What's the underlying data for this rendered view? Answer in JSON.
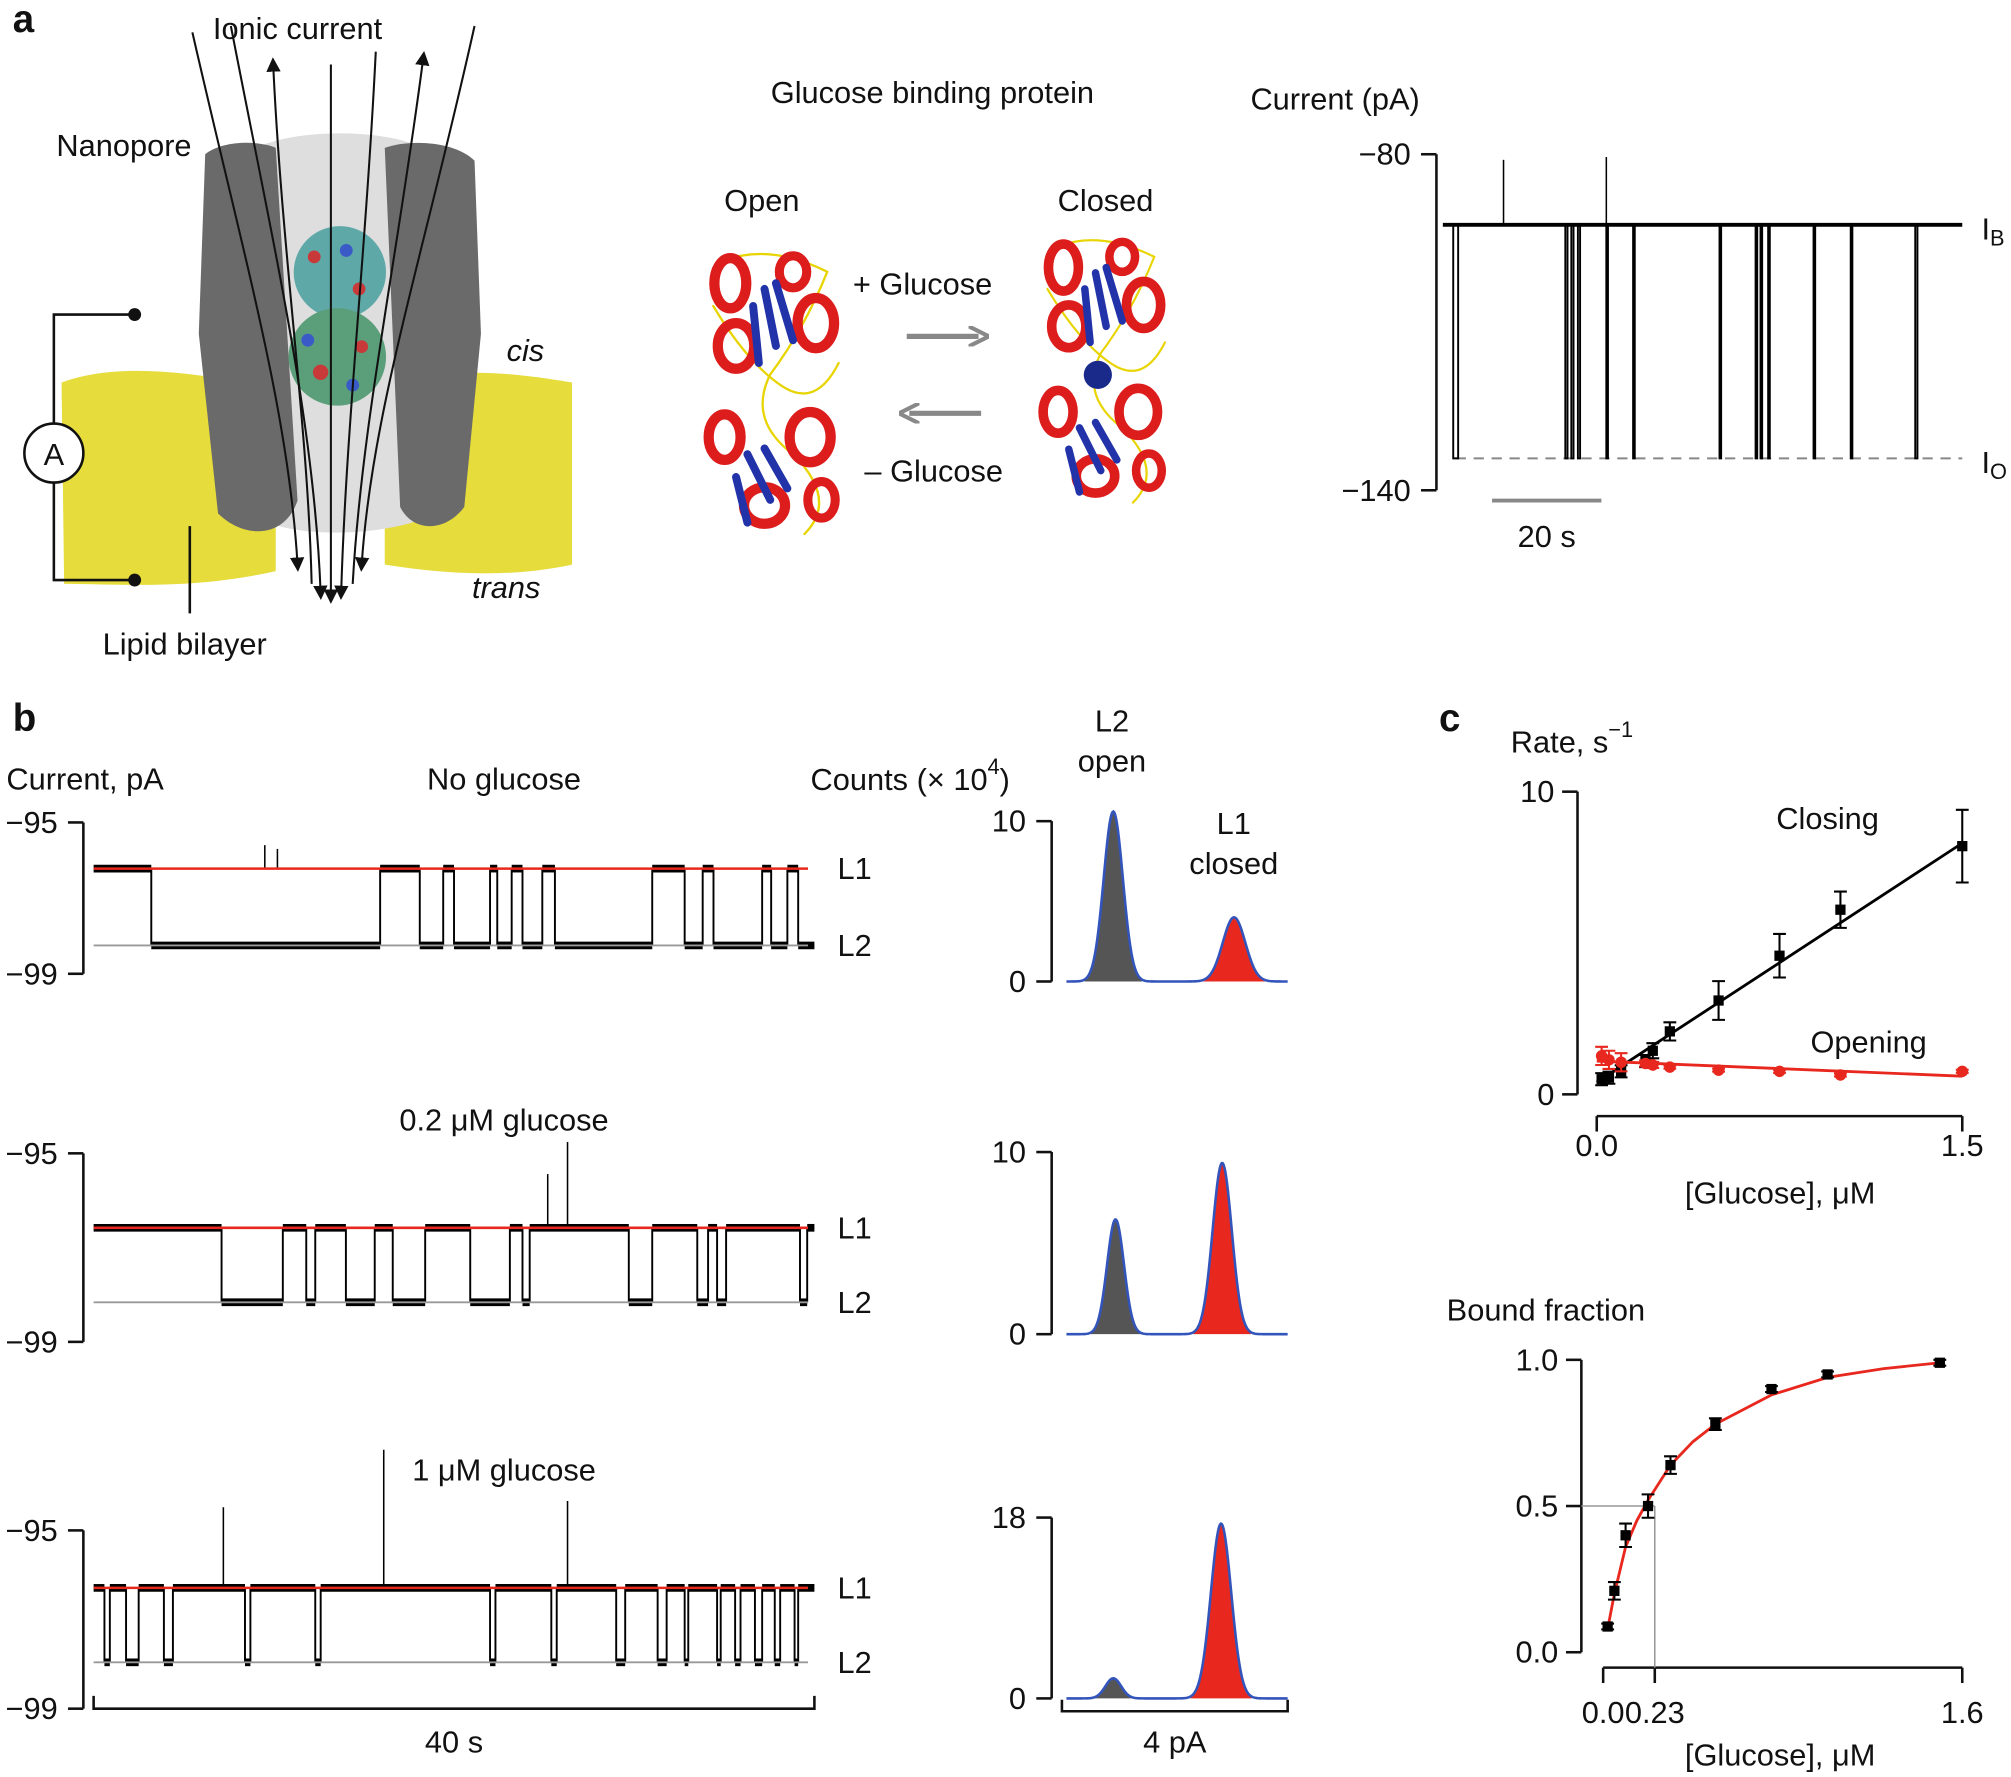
{
  "panel_labels": [
    "a",
    "b",
    "c"
  ],
  "a": {
    "schematic": {
      "ionic_current": "Ionic current",
      "nanopore": "Nanopore",
      "cis": "cis",
      "trans": "trans",
      "bilayer": "Lipid bilayer",
      "ammeter": "A"
    },
    "protein": {
      "title": "Glucose binding protein",
      "open": "Open",
      "closed": "Closed",
      "plus": "+ Glucose",
      "minus": "– Glucose"
    },
    "trace": {
      "ylabel": "Current (pA)",
      "ylim": [
        -140,
        -80
      ],
      "yticks": [
        {
          "value": -80,
          "label": "−80"
        },
        {
          "value": -140,
          "label": "−140"
        }
      ],
      "xlim": [
        0,
        95
      ],
      "baseline": -92.6,
      "blocked": -134.3,
      "color": "#000000",
      "events": [
        [
          1.9,
          2.8
        ],
        [
          22.4,
          22.8
        ],
        [
          23.5,
          23.9
        ],
        [
          24.7,
          25.1
        ],
        [
          29.9,
          30.2
        ],
        [
          34.8,
          35.1
        ],
        [
          50.6,
          50.9
        ],
        [
          57.2,
          57.5
        ],
        [
          58.1,
          58.4
        ],
        [
          59.5,
          59.8
        ],
        [
          67.8,
          68.1
        ],
        [
          74.6,
          74.9
        ],
        [
          86.4,
          86.8
        ]
      ],
      "spikes": [
        [
          11.1,
          -81
        ],
        [
          29.9,
          -80.5
        ]
      ],
      "levels": [
        {
          "main": "I",
          "sub": "B"
        },
        {
          "main": "I",
          "sub": "O"
        }
      ],
      "scale_bar": {
        "value": 20,
        "label": "20 s"
      }
    }
  },
  "b": {
    "ylabel": "Current, pA",
    "hist_ylabel": {
      "main": "Counts (× 10",
      "sup": "4",
      "end": ")"
    },
    "open_label": [
      "L2",
      "open"
    ],
    "closed_label": [
      "L1",
      "closed"
    ],
    "level_names": [
      "L1",
      "L2"
    ],
    "l1_color": "#e8281e",
    "l2_color": "#999999",
    "hist_colors": [
      "#555555",
      "#e8281e"
    ],
    "hist_line_color": "#3355bb",
    "xlim": [
      0,
      40
    ],
    "scale_bar": {
      "value": 40,
      "label": "40 s"
    },
    "hist_xlim": [
      0,
      4
    ],
    "hist_scale_bar": {
      "value": 4,
      "label": "4 pA"
    },
    "traces": [
      {
        "title": "No glucose",
        "ylim": [
          -99,
          -95
        ],
        "yticks": [
          {
            "value": -95,
            "label": "−95"
          },
          {
            "value": -99,
            "label": "−99"
          }
        ],
        "l1": -96.22,
        "l2": -98.25,
        "switch_times": [
          3.2,
          15.9,
          18.1,
          19.4,
          20.0,
          22.0,
          22.4,
          23.2,
          23.8,
          24.9,
          25.6,
          31.0,
          32.8,
          33.8,
          34.4,
          37.1,
          37.6,
          38.5,
          39.1
        ],
        "spikes": [
          [
            9.5,
            -95.6
          ],
          [
            10.2,
            -95.7
          ]
        ],
        "hist": {
          "ylim": [
            0,
            10
          ],
          "yticks": [
            0,
            10
          ],
          "peaks": [
            {
              "center": 0.91,
              "height": 10.6,
              "sd": 0.17
            },
            {
              "center": 3.05,
              "height": 4.0,
              "sd": 0.2
            }
          ]
        }
      },
      {
        "title": "0.2 μM glucose",
        "ylim": [
          -99,
          -95
        ],
        "yticks": [
          {
            "value": -95,
            "label": "−95"
          },
          {
            "value": -99,
            "label": "−99"
          }
        ],
        "l1": -96.58,
        "l2": -98.16,
        "switch_times": [
          7.1,
          10.5,
          11.8,
          12.3,
          14.0,
          15.6,
          16.6,
          18.4,
          20.9,
          23.1,
          23.8,
          24.2,
          29.7,
          31.0,
          33.5,
          34.1,
          34.6,
          35.1,
          39.2,
          39.6
        ],
        "spikes": [
          [
            25.2,
            -95.44
          ],
          [
            26.3,
            -94.76
          ]
        ],
        "hist": {
          "ylim": [
            0,
            10
          ],
          "yticks": [
            0,
            10
          ],
          "peaks": [
            {
              "center": 0.95,
              "height": 6.3,
              "sd": 0.15
            },
            {
              "center": 2.84,
              "height": 9.4,
              "sd": 0.17
            }
          ]
        }
      },
      {
        "title": "1 μM glucose",
        "ylim": [
          -99,
          -95
        ],
        "yticks": [
          {
            "value": -95,
            "label": "−95"
          },
          {
            "value": -99,
            "label": "−99"
          }
        ],
        "l1": -96.29,
        "l2": -97.96,
        "switch_times": [
          0.6,
          0.9,
          1.8,
          2.5,
          3.9,
          4.4,
          8.4,
          8.7,
          12.3,
          12.6,
          22.0,
          22.3,
          25.4,
          25.7,
          29.0,
          29.5,
          31.3,
          31.8,
          32.8,
          33.0,
          34.6,
          34.8,
          35.6,
          35.9,
          36.7,
          37.1,
          37.8,
          38.1,
          38.9,
          39.1
        ],
        "spikes": [
          [
            7.2,
            -94.48
          ],
          [
            16.1,
            -93.19
          ],
          [
            26.3,
            -94.34
          ]
        ],
        "hist": {
          "ylim": [
            0,
            18
          ],
          "yticks": [
            0,
            18
          ],
          "peaks": [
            {
              "center": 0.91,
              "height": 2.0,
              "sd": 0.14
            },
            {
              "center": 2.82,
              "height": 17.4,
              "sd": 0.18
            }
          ]
        }
      }
    ]
  },
  "c": {
    "rate": {
      "ylabel": {
        "main": "Rate, s",
        "sup": "−1"
      },
      "xlabel": "[Glucose], μM",
      "xlim": [
        0,
        1.5
      ],
      "ylim": [
        0,
        10
      ],
      "xticks": [
        {
          "value": 0,
          "label": "0.0"
        },
        1.5
      ],
      "yticks": [
        0,
        10
      ],
      "series": [
        {
          "name": "Closing",
          "color": "#000000",
          "x": [
            0.02,
            0.05,
            0.1,
            0.2,
            0.23,
            0.3,
            0.5,
            0.75,
            1.0,
            1.5
          ],
          "values": [
            0.5,
            0.55,
            0.76,
            1.1,
            1.44,
            2.08,
            3.1,
            4.58,
            6.1,
            8.2
          ],
          "errors": [
            0.2,
            0.2,
            0.2,
            0.2,
            0.25,
            0.3,
            0.64,
            0.72,
            0.6,
            1.2
          ],
          "fit": {
            "x": [
              0,
              1.5
            ],
            "values": [
              0.4,
              8.3
            ]
          }
        },
        {
          "name": "Opening",
          "color": "#e8281e",
          "x": [
            0.02,
            0.05,
            0.1,
            0.2,
            0.23,
            0.3,
            0.5,
            0.75,
            1.0,
            1.5
          ],
          "values": [
            1.27,
            1.14,
            1.06,
            1.02,
            0.97,
            0.9,
            0.8,
            0.76,
            0.64,
            0.76
          ],
          "errors": [
            0.3,
            0.3,
            0.3,
            0.1,
            0.1,
            0.05,
            0.05,
            0.05,
            0.05,
            0.05
          ],
          "fit": {
            "x": [
              0,
              1.5
            ],
            "values": [
              1.1,
              0.6
            ]
          }
        }
      ]
    },
    "binding": {
      "ylabel": "Bound fraction",
      "xlabel": "[Glucose], μM",
      "xlim": [
        0,
        1.6
      ],
      "ylim": [
        0,
        1
      ],
      "xticks": [
        {
          "value": 0,
          "label": "0.0"
        },
        0.23,
        1.6
      ],
      "yticks": [
        {
          "value": 0,
          "label": "0.0"
        },
        0.5,
        {
          "value": 1,
          "label": "1.0"
        }
      ],
      "color": "#000000",
      "fit_color": "#e8281e",
      "x": [
        0.02,
        0.05,
        0.1,
        0.2,
        0.3,
        0.5,
        0.75,
        1.0,
        1.5
      ],
      "values": [
        0.088,
        0.21,
        0.4,
        0.5,
        0.64,
        0.78,
        0.9,
        0.95,
        0.99
      ],
      "errors": [
        0.01,
        0.03,
        0.04,
        0.04,
        0.03,
        0.02,
        0.01,
        0.01,
        0.01
      ],
      "fit": {
        "x": [
          0.02,
          0.05,
          0.1,
          0.15,
          0.2,
          0.3,
          0.4,
          0.5,
          0.75,
          1.0,
          1.25,
          1.5
        ],
        "values": [
          0.08,
          0.2,
          0.36,
          0.45,
          0.52,
          0.64,
          0.72,
          0.78,
          0.88,
          0.94,
          0.97,
          0.99
        ]
      },
      "guide": {
        "x": 0.23,
        "y": 0.5
      }
    }
  }
}
